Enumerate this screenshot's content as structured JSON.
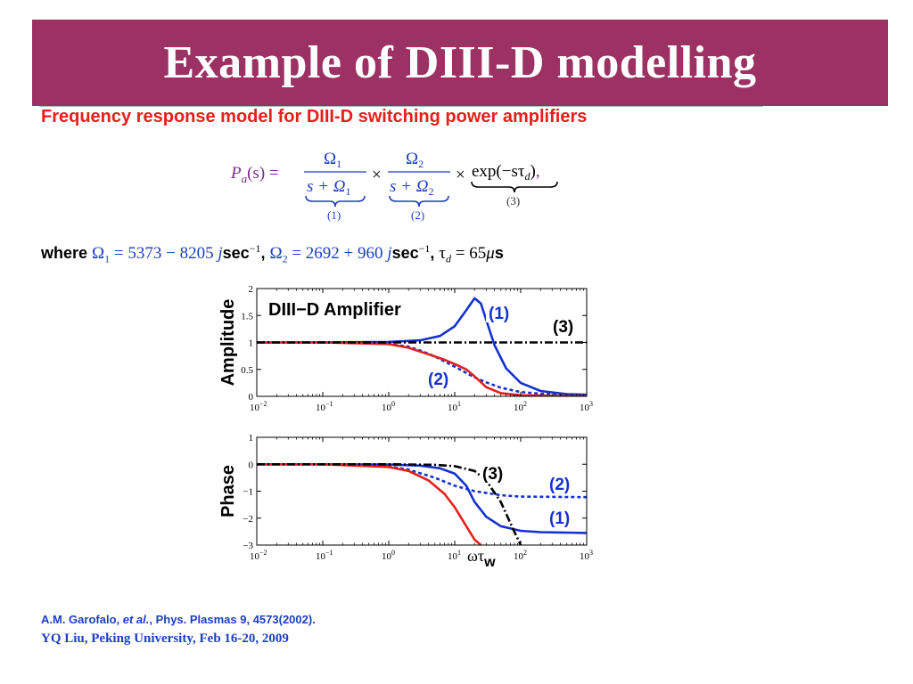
{
  "slide": {
    "title": "Example of DIII-D modelling",
    "subtitle": "Frequency response model for DIII-D switching power amplifiers",
    "formula": {
      "lhs": "P",
      "lhs_sub": "a",
      "lhs_arg": "(s) =",
      "num1": "Ω",
      "num1_sub": "1",
      "den1": "s + Ω",
      "den1_sub": "1",
      "tag1": "(1)",
      "times": "×",
      "num2": "Ω",
      "num2_sub": "2",
      "den2": "s + Ω",
      "den2_sub": "2",
      "tag2": "(2)",
      "exp": "exp(−sτ",
      "exp_sub": "d",
      "exp_close": ")",
      "comma": ",",
      "tag3": "(3)"
    },
    "where": {
      "lead": "where ",
      "o1": "Ω",
      "o1_sub": "1",
      "o1_val": " = 5373 − 8205 ",
      "j1": "j",
      "unit1": "sec",
      "unit1_sup": "−1",
      "sep1": ", ",
      "o2": "Ω",
      "o2_sub": "2",
      "o2_val": " = 2692 + 960 ",
      "j2": "j",
      "unit2": "sec",
      "unit2_sup": "−1",
      "sep2": ", ",
      "tau": "τ",
      "tau_sub": "d",
      "tau_val": " = 65",
      "mu": "μ",
      "tau_unit": "s"
    },
    "citation": "A.M. Garofalo, et al., Phys. Plasmas 9, 4573(2002).",
    "footer": "YQ Liu, Peking University, Feb 16-20, 2009"
  },
  "chart_data": [
    {
      "type": "line",
      "title": "DIII−D Amplifier",
      "ylabel": "Amplitude",
      "xlabel": "",
      "xscale": "log",
      "xlim": [
        0.01,
        1000
      ],
      "ylim": [
        0,
        2
      ],
      "xticks": [
        "10^-2",
        "10^-1",
        "10^0",
        "10^1",
        "10^2",
        "10^3"
      ],
      "yticks": [
        "0",
        "0.5",
        "1",
        "1.5",
        "2"
      ],
      "series": [
        {
          "name": "(1)",
          "color": "#1432cc",
          "style": "solid",
          "x": [
            0.01,
            0.1,
            1,
            3,
            6,
            10,
            15,
            20,
            25,
            30,
            40,
            60,
            100,
            200,
            500,
            1000
          ],
          "y": [
            1.0,
            1.0,
            1.01,
            1.04,
            1.12,
            1.3,
            1.6,
            1.82,
            1.72,
            1.42,
            0.95,
            0.52,
            0.25,
            0.1,
            0.04,
            0.03
          ]
        },
        {
          "name": "(2)",
          "color": "#1432cc",
          "style": "dotted",
          "x": [
            0.01,
            0.1,
            0.5,
            1,
            2,
            3,
            5,
            10,
            20,
            30,
            50,
            100,
            200,
            1000
          ],
          "y": [
            1.0,
            1.0,
            0.99,
            0.97,
            0.92,
            0.85,
            0.74,
            0.55,
            0.35,
            0.26,
            0.16,
            0.08,
            0.05,
            0.01
          ]
        },
        {
          "name": "",
          "color": "#e3201b",
          "style": "solid",
          "x": [
            0.01,
            0.1,
            1,
            2,
            4,
            7,
            10,
            15,
            20,
            30,
            50,
            100,
            1000
          ],
          "y": [
            1.0,
            1.0,
            0.97,
            0.9,
            0.78,
            0.68,
            0.6,
            0.5,
            0.37,
            0.17,
            0.06,
            0.02,
            0.0
          ]
        },
        {
          "name": "(3)",
          "color": "#000000",
          "style": "dashdot",
          "x": [
            0.01,
            1000
          ],
          "y": [
            1.0,
            1.0
          ]
        }
      ]
    },
    {
      "type": "line",
      "title": "",
      "ylabel": "Phase",
      "xlabel": "ωτ",
      "xlabel_sub": "w",
      "xscale": "log",
      "xlim": [
        0.01,
        1000
      ],
      "ylim": [
        -3,
        1
      ],
      "xticks": [
        "10^-2",
        "10^-1",
        "10^0",
        "10^1",
        "10^2",
        "10^3"
      ],
      "yticks": [
        "−3",
        "−2",
        "−1",
        "0",
        "1"
      ],
      "series": [
        {
          "name": "(1)",
          "color": "#1432cc",
          "style": "solid",
          "x": [
            0.01,
            0.1,
            1,
            3,
            6,
            10,
            15,
            20,
            30,
            50,
            100,
            200,
            1000
          ],
          "y": [
            0.0,
            0.0,
            -0.01,
            -0.05,
            -0.15,
            -0.35,
            -0.8,
            -1.4,
            -1.95,
            -2.3,
            -2.47,
            -2.52,
            -2.55
          ]
        },
        {
          "name": "(2)",
          "color": "#1432cc",
          "style": "dotted",
          "x": [
            0.01,
            0.1,
            0.5,
            1,
            2,
            5,
            10,
            20,
            50,
            100,
            1000
          ],
          "y": [
            0.0,
            0.0,
            -0.03,
            -0.08,
            -0.2,
            -0.5,
            -0.8,
            -1.0,
            -1.15,
            -1.2,
            -1.22
          ]
        },
        {
          "name": "",
          "color": "#e3201b",
          "style": "solid",
          "x": [
            0.01,
            0.1,
            1,
            2,
            4,
            7,
            10,
            15,
            20,
            25
          ],
          "y": [
            0.0,
            0.0,
            -0.1,
            -0.25,
            -0.6,
            -1.1,
            -1.6,
            -2.3,
            -2.8,
            -3.0
          ]
        },
        {
          "name": "(3)",
          "color": "#000000",
          "style": "dashdot",
          "x": [
            0.01,
            1,
            5,
            10,
            20,
            30,
            50,
            80,
            100
          ],
          "y": [
            0.0,
            -0.001,
            -0.02,
            -0.07,
            -0.25,
            -0.6,
            -1.4,
            -2.5,
            -3.0
          ]
        }
      ]
    }
  ]
}
